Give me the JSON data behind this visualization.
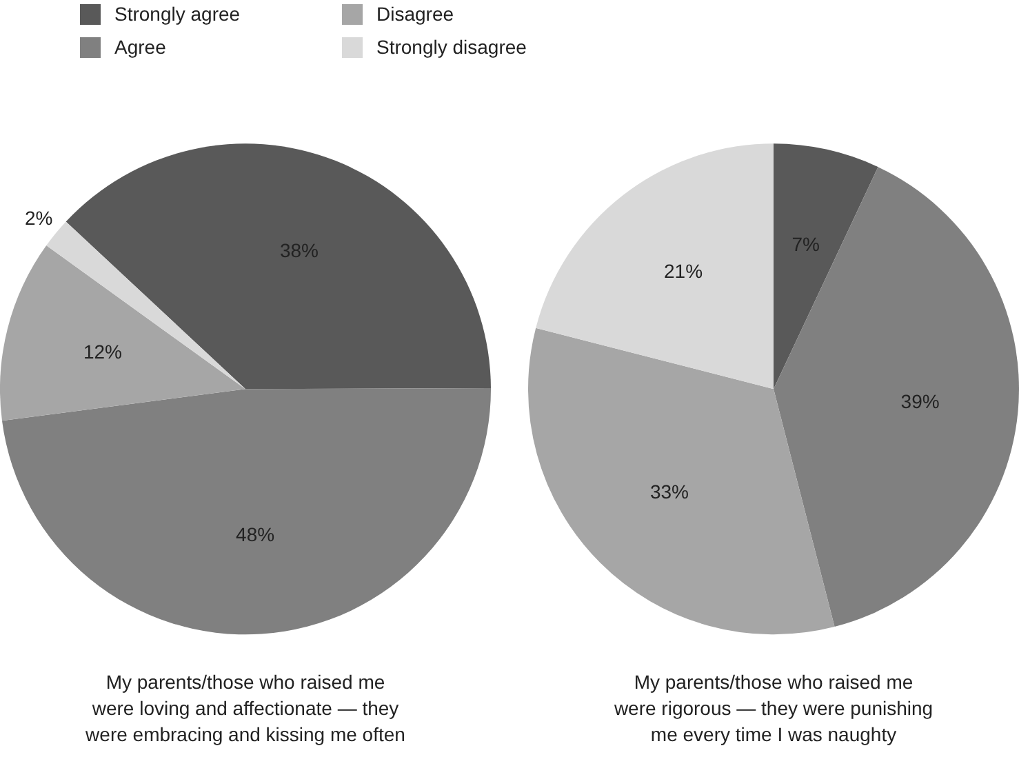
{
  "chart_data": [
    {
      "type": "pie",
      "title": "My parents/those who raised me were loving and affectionate — they were embracing and kissing me often",
      "categories": [
        "Strongly agree",
        "Agree",
        "Disagree",
        "Strongly disagree"
      ],
      "values": [
        38,
        48,
        12,
        2
      ],
      "colors": [
        "#595959",
        "#808080",
        "#a6a6a6",
        "#d9d9d9"
      ],
      "value_labels": [
        "38%",
        "48%",
        "12%",
        "2%"
      ],
      "legend": "top"
    },
    {
      "type": "pie",
      "title": "My parents/those who raised me were rigorous — they were punishing me every time I was naughty",
      "categories": [
        null,
        null,
        null,
        null
      ],
      "values": [
        7,
        39,
        33,
        21
      ],
      "colors": [
        "#595959",
        "#808080",
        "#a6a6a6",
        "#d9d9d9"
      ],
      "value_labels": [
        "7%",
        "39%",
        "33%",
        "21%"
      ],
      "legend": false
    }
  ]
}
